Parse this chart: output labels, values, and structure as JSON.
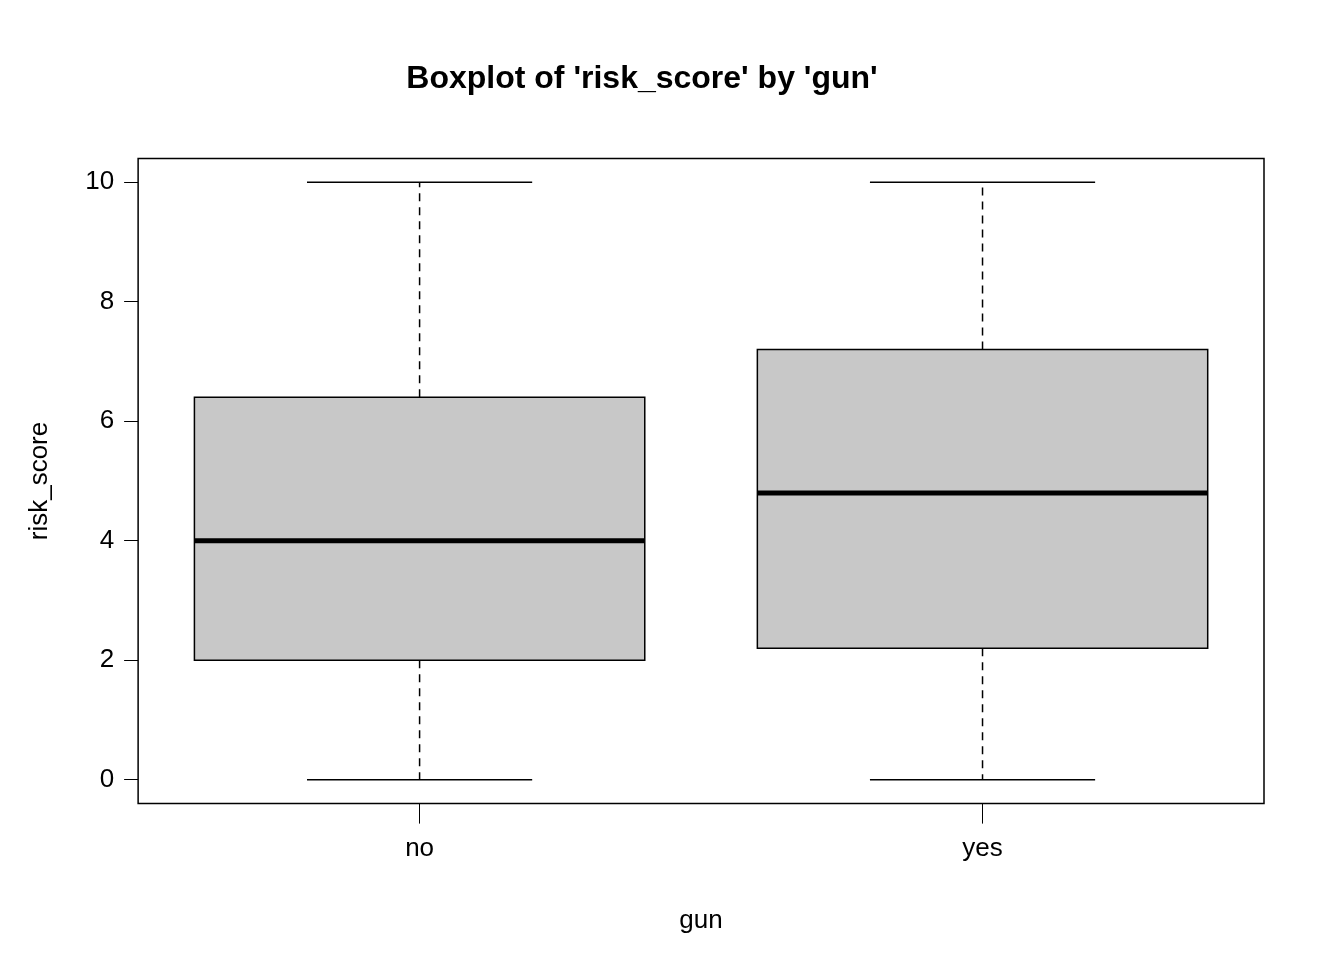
{
  "chart_data": {
    "type": "box",
    "title": "Boxplot of 'risk_score' by 'gun'",
    "xlabel": "gun",
    "ylabel": "risk_score",
    "categories": [
      "no",
      "yes"
    ],
    "series": [
      {
        "color": "#c8c8c8",
        "boxes": [
          {
            "low": 0,
            "q1": 2.0,
            "median": 4.0,
            "q3": 6.4,
            "high": 10.0
          },
          {
            "low": 0,
            "q1": 2.2,
            "median": 4.8,
            "q3": 7.2,
            "high": 10.0
          }
        ]
      }
    ],
    "ylim": [
      -0.4,
      10.4
    ],
    "yticks": [
      0,
      2,
      4,
      6,
      8,
      10
    ],
    "grid": false,
    "legend": false
  }
}
